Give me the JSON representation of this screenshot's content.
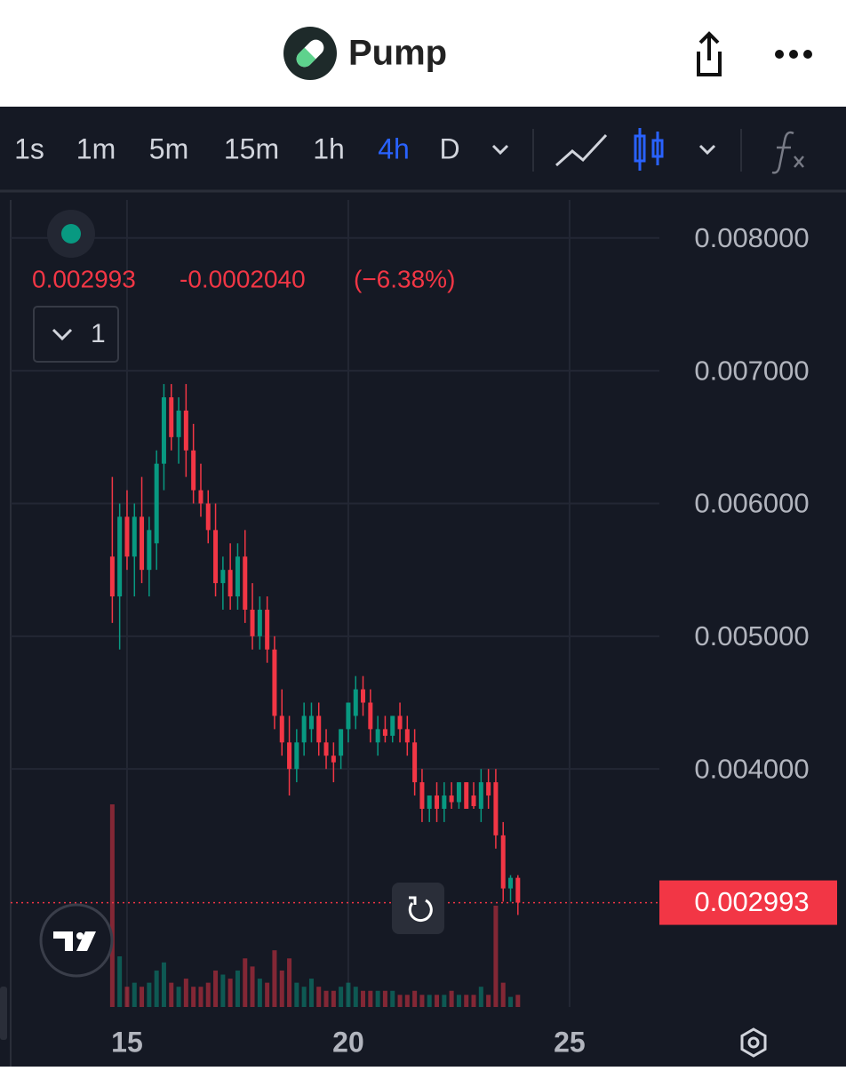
{
  "app_title": "Pump",
  "toolbar": {
    "timeframes": [
      "1s",
      "1m",
      "5m",
      "15m",
      "1h",
      "4h",
      "D"
    ],
    "selected": 5
  },
  "legend": {
    "price": "0.002993",
    "change": "-0.0002040",
    "change_pct": "(−6.38%)",
    "indicator_count": "1"
  },
  "chart_data": {
    "type": "candlestick",
    "up_color": "#089981",
    "down_color": "#f23645",
    "x": [
      14.667,
      14.833,
      15,
      15.167,
      15.333,
      15.5,
      15.667,
      15.833,
      16,
      16.167,
      16.333,
      16.5,
      16.667,
      16.833,
      17,
      17.167,
      17.333,
      17.5,
      17.667,
      17.833,
      18,
      18.167,
      18.333,
      18.5,
      18.667,
      18.833,
      19,
      19.167,
      19.333,
      19.5,
      19.667,
      19.833,
      20,
      20.167,
      20.333,
      20.5,
      20.667,
      20.833,
      21,
      21.167,
      21.333,
      21.5,
      21.667,
      21.833,
      22,
      22.167,
      22.333,
      22.5,
      22.667,
      22.833,
      23,
      23.167,
      23.333,
      23.5,
      23.667,
      23.833
    ],
    "open": [
      0.0056,
      0.0053,
      0.0059,
      0.0056,
      0.0059,
      0.0055,
      0.0057,
      0.0063,
      0.0068,
      0.0065,
      0.0067,
      0.0064,
      0.0061,
      0.006,
      0.0058,
      0.0054,
      0.0055,
      0.0053,
      0.0056,
      0.0052,
      0.005,
      0.0052,
      0.0049,
      0.0044,
      0.0042,
      0.004,
      0.0042,
      0.0043,
      0.0044,
      0.0042,
      0.0041,
      0.0041,
      0.0043,
      0.0044,
      0.0046,
      0.0045,
      0.0042,
      0.0043,
      0.00425,
      0.0044,
      0.0043,
      0.0042,
      0.0039,
      0.0037,
      0.0038,
      0.0037,
      0.0038,
      0.00375,
      0.0039,
      0.0038,
      0.0037,
      0.0039,
      0.0039,
      0.0035,
      0.0031,
      0.00318
    ],
    "high": [
      0.0062,
      0.006,
      0.0061,
      0.006,
      0.0062,
      0.0059,
      0.0064,
      0.0069,
      0.0069,
      0.0068,
      0.0069,
      0.0066,
      0.0063,
      0.0061,
      0.006,
      0.0056,
      0.0057,
      0.0057,
      0.0058,
      0.0054,
      0.0053,
      0.0053,
      0.005,
      0.0046,
      0.0044,
      0.0043,
      0.0045,
      0.0045,
      0.0045,
      0.0043,
      0.0042,
      0.0043,
      0.0045,
      0.0047,
      0.0047,
      0.0046,
      0.0044,
      0.0044,
      0.0044,
      0.0045,
      0.0044,
      0.0043,
      0.004,
      0.0038,
      0.0039,
      0.0039,
      0.0039,
      0.0039,
      0.0039,
      0.0039,
      0.004,
      0.004,
      0.004,
      0.0036,
      0.0032,
      0.0032
    ],
    "low": [
      0.0051,
      0.0049,
      0.0055,
      0.0053,
      0.0054,
      0.0053,
      0.0055,
      0.0061,
      0.0064,
      0.0063,
      0.0062,
      0.006,
      0.0059,
      0.0057,
      0.0053,
      0.0052,
      0.0052,
      0.0052,
      0.0051,
      0.0049,
      0.0049,
      0.0048,
      0.0043,
      0.0041,
      0.0038,
      0.0039,
      0.0041,
      0.0042,
      0.0041,
      0.004,
      0.0039,
      0.004,
      0.0042,
      0.0043,
      0.0044,
      0.0042,
      0.0041,
      0.0042,
      0.0042,
      0.0042,
      0.0041,
      0.0038,
      0.0036,
      0.0036,
      0.0036,
      0.0036,
      0.0037,
      0.0037,
      0.0037,
      0.0037,
      0.0036,
      0.0037,
      0.0034,
      0.003,
      0.003,
      0.0029
    ],
    "close": [
      0.0053,
      0.0059,
      0.0056,
      0.0059,
      0.0055,
      0.0058,
      0.0063,
      0.0068,
      0.0065,
      0.0067,
      0.0064,
      0.0061,
      0.006,
      0.0058,
      0.0054,
      0.0055,
      0.0053,
      0.0056,
      0.0052,
      0.005,
      0.0052,
      0.0049,
      0.0044,
      0.0042,
      0.004,
      0.0042,
      0.0044,
      0.0044,
      0.0042,
      0.0041,
      0.00405,
      0.0043,
      0.0045,
      0.0046,
      0.0045,
      0.0043,
      0.0043,
      0.00425,
      0.0044,
      0.0043,
      0.0042,
      0.0039,
      0.0037,
      0.0038,
      0.0037,
      0.0038,
      0.00375,
      0.0039,
      0.0037,
      0.00372,
      0.0039,
      0.0038,
      0.0035,
      0.0031,
      0.00318,
      0.002993
    ],
    "volume": [
      100,
      25,
      10,
      12,
      10,
      12,
      18,
      22,
      12,
      10,
      14,
      10,
      10,
      12,
      18,
      16,
      14,
      18,
      24,
      20,
      14,
      12,
      28,
      18,
      24,
      12,
      10,
      14,
      10,
      8,
      8,
      10,
      12,
      10,
      8,
      8,
      8,
      8,
      8,
      6,
      6,
      8,
      6,
      6,
      6,
      6,
      8,
      6,
      6,
      6,
      10,
      6,
      50,
      12,
      5,
      6
    ],
    "vlim": [
      0,
      100
    ],
    "xlim": [
      12.37,
      27.03
    ],
    "xticks": [
      15,
      20,
      25
    ],
    "ylim": [
      0.0022,
      0.0083
    ],
    "yticks": [
      {
        "value": 0.004,
        "label": "0.004000"
      },
      {
        "value": 0.005,
        "label": "0.005000"
      },
      {
        "value": 0.006,
        "label": "0.006000"
      },
      {
        "value": 0.007,
        "label": "0.007000"
      },
      {
        "value": 0.008,
        "label": "0.008000"
      }
    ],
    "last_price": {
      "value": 0.002993,
      "label": "0.002993"
    },
    "grid": true
  }
}
